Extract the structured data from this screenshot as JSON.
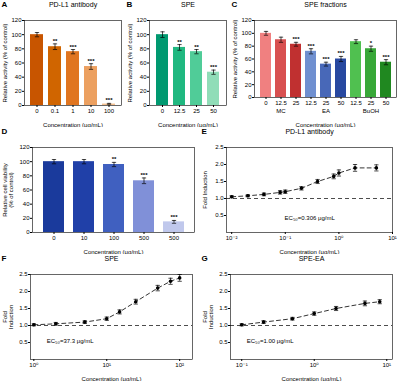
{
  "chart_data": [
    {
      "type": "bar",
      "panel_label": "A",
      "title": "PD-L1 antibody",
      "categories": [
        "0",
        "0.1",
        "1",
        "10",
        "100"
      ],
      "values": [
        100,
        83,
        76,
        55,
        2
      ],
      "errors": [
        3,
        4,
        3,
        4,
        1
      ],
      "colors": [
        "#C85500",
        "#D06500",
        "#E07520",
        "#ECA060",
        "#F5C090"
      ],
      "annotations": [
        null,
        "**",
        "***",
        "***",
        "***"
      ],
      "xlabel": "Concentration (μg/mL)",
      "ylabel": "Relative activity (% of control)",
      "ylim": [
        0,
        120
      ],
      "yticks": [
        0,
        20,
        40,
        60,
        80,
        100,
        120
      ]
    },
    {
      "type": "bar",
      "panel_label": "B",
      "title": "SPE",
      "categories": [
        "0",
        "12.5",
        "25",
        "50"
      ],
      "values": [
        100,
        82,
        76,
        47
      ],
      "errors": [
        4,
        4,
        3,
        3
      ],
      "colors": [
        "#009970",
        "#20B880",
        "#50CC98",
        "#90DDB8"
      ],
      "annotations": [
        null,
        "**",
        "**",
        "***"
      ],
      "xlabel": "Concentration (μg/mL)",
      "ylabel": "Relative activity (% of control)",
      "ylim": [
        0,
        120
      ],
      "yticks": [
        0,
        20,
        40,
        60,
        80,
        100,
        120
      ]
    },
    {
      "type": "bar",
      "panel_label": "C",
      "title": "SPE fractions",
      "series": [
        {
          "name": "MC",
          "categories": [
            "0",
            "12.5",
            "25"
          ],
          "values": [
            100,
            90,
            83
          ],
          "errors": [
            3,
            4,
            3
          ],
          "colors": [
            "#F08080",
            "#D85050",
            "#C03030"
          ],
          "annotations": [
            null,
            null,
            "***"
          ]
        },
        {
          "name": "EA",
          "categories": [
            "12.5",
            "25",
            "50"
          ],
          "values": [
            72,
            52,
            60
          ],
          "errors": [
            4,
            3,
            4
          ],
          "colors": [
            "#7090D0",
            "#4868B8",
            "#2848A0"
          ],
          "annotations": [
            "***",
            "***",
            "***"
          ]
        },
        {
          "name": "BuOH",
          "categories": [
            "12.5",
            "25",
            "50"
          ],
          "values": [
            87,
            76,
            55
          ],
          "errors": [
            3,
            4,
            4
          ],
          "colors": [
            "#50C050",
            "#38A838",
            "#208820"
          ],
          "annotations": [
            null,
            "*",
            "***"
          ]
        }
      ],
      "xlabel": "Concentration (μg/mL)",
      "ylabel": "Relative activity (% of control)",
      "ylim": [
        0,
        120
      ],
      "yticks": [
        0,
        20,
        40,
        60,
        80,
        100,
        120
      ]
    },
    {
      "type": "bar",
      "panel_label": "D",
      "categories": [
        "0",
        "10",
        "100",
        "500",
        "500"
      ],
      "values": [
        100,
        100,
        96,
        73,
        15
      ],
      "errors": [
        3,
        3,
        3,
        4,
        2
      ],
      "colors": [
        "#1A3A9C",
        "#2040A8",
        "#4060C0",
        "#8090D8",
        "#C0C8EC"
      ],
      "annotations": [
        null,
        null,
        "**",
        "***",
        "***"
      ],
      "xlabel": "Concentration (μg/mL)",
      "ylabel": "Relative cell viability\n(% of control)",
      "ylim": [
        0,
        120
      ],
      "yticks": [
        0,
        20,
        40,
        60,
        80,
        100,
        120
      ]
    },
    {
      "type": "line",
      "panel_label": "E",
      "title": "PD-L1 antibody",
      "x": [
        0.01,
        0.02,
        0.04,
        0.08,
        0.1,
        0.2,
        0.4,
        0.8,
        1.0,
        2.0,
        5.0
      ],
      "values": [
        1.05,
        1.08,
        1.12,
        1.18,
        1.2,
        1.3,
        1.5,
        1.65,
        1.75,
        1.9,
        1.9
      ],
      "errors": [
        0.03,
        0.03,
        0.04,
        0.05,
        0.05,
        0.05,
        0.06,
        0.07,
        0.09,
        0.1,
        0.09
      ],
      "color": "black",
      "marker": "circle",
      "line_style": "dashed",
      "reference_line": {
        "y": 1,
        "color": "black",
        "line_style": "dashed"
      },
      "annotation": "EC₅₀=0.306 μg/mL",
      "xlabel": "Concentration (μg/mL)",
      "ylabel": "Fold Induction",
      "log": "x",
      "xlim": [
        0.008,
        10
      ],
      "xticks": [
        {
          "value": 0.01,
          "label": "10⁻²"
        },
        {
          "value": 0.1,
          "label": "10⁻¹"
        },
        {
          "value": 1,
          "label": "10⁰"
        },
        {
          "value": 10,
          "label": "10¹"
        }
      ],
      "ylim": [
        0,
        2.5
      ],
      "yticks": [
        0.5,
        {
          "value": 1,
          "label": "1.0"
        },
        1.5,
        {
          "value": 2,
          "label": "2.0"
        },
        2.5
      ]
    },
    {
      "type": "line",
      "panel_label": "F",
      "title": "SPE",
      "x": [
        1,
        2,
        5,
        10,
        15,
        25,
        50,
        75,
        100
      ],
      "values": [
        1.02,
        1.05,
        1.1,
        1.2,
        1.4,
        1.7,
        2.1,
        2.3,
        2.4
      ],
      "errors": [
        0.03,
        0.04,
        0.04,
        0.05,
        0.06,
        0.07,
        0.08,
        0.09,
        0.1
      ],
      "color": "black",
      "marker": "circle",
      "line_style": "dashed",
      "reference_line": {
        "y": 1,
        "color": "black",
        "line_style": "dashed"
      },
      "annotation": "EC₅₀=37.3 μg/mL",
      "xlabel": "Concentration (μg/mL)",
      "ylabel": "Fold\nInduction",
      "log": "x",
      "xlim": [
        0.9,
        150
      ],
      "xticks": [
        {
          "value": 1,
          "label": "10⁰"
        },
        {
          "value": 10,
          "label": "10¹"
        },
        {
          "value": 100,
          "label": "10²"
        }
      ],
      "ylim": [
        0,
        2.5
      ],
      "yticks": [
        0.5,
        {
          "value": 1,
          "label": "1.0"
        },
        1.5,
        {
          "value": 2,
          "label": "2.0"
        },
        2.5
      ]
    },
    {
      "type": "line",
      "panel_label": "G",
      "title": "SPE-EA",
      "x": [
        0.1,
        0.2,
        0.5,
        1.0,
        2.0,
        5.0,
        8.0
      ],
      "values": [
        1.02,
        1.1,
        1.2,
        1.35,
        1.5,
        1.65,
        1.7
      ],
      "errors": [
        0.03,
        0.04,
        0.04,
        0.05,
        0.06,
        0.07,
        0.06
      ],
      "color": "black",
      "marker": "circle",
      "line_style": "dashed",
      "reference_line": {
        "y": 1,
        "color": "black",
        "line_style": "dashed"
      },
      "annotation": "EC₅₀=1.00 μg/mL",
      "xlabel": "Concentration (μg/mL)",
      "ylabel": "Fold\nInduction",
      "log": "x",
      "xlim": [
        0.07,
        12
      ],
      "xticks": [
        {
          "value": 0.1,
          "label": "10⁻¹"
        },
        {
          "value": 1,
          "label": "10⁰"
        },
        {
          "value": 10,
          "label": "10¹"
        }
      ],
      "ylim": [
        0,
        2.5
      ],
      "yticks": [
        0.5,
        {
          "value": 1,
          "label": "1.0"
        },
        1.5,
        {
          "value": 2,
          "label": "2.0"
        },
        2.5
      ]
    }
  ]
}
